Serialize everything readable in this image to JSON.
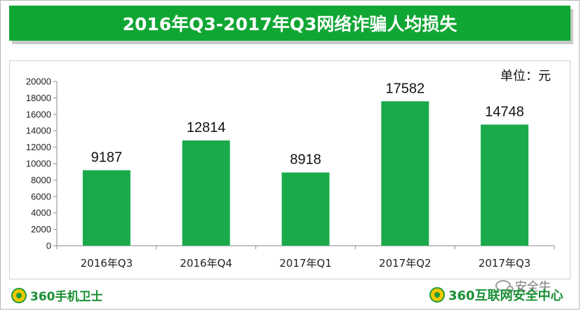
{
  "title": "2016年Q3-2017年Q3网络诈骗人均损失",
  "footer": {
    "left_brand": "360手机卫士",
    "right_brand": "360互联网安全中心",
    "watermark": "安全牛"
  },
  "colors": {
    "banner": "#10a634",
    "bar": "#1aaa4a",
    "brand_text": "#1a8f35"
  },
  "chart_data": {
    "type": "bar",
    "title": "2016年Q3-2017年Q3网络诈骗人均损失",
    "unit_label": "单位：元",
    "categories": [
      "2016年Q3",
      "2016年Q4",
      "2017年Q1",
      "2017年Q2",
      "2017年Q3"
    ],
    "values": [
      9187,
      12814,
      8918,
      17582,
      14748
    ],
    "ylim": [
      0,
      20000
    ],
    "yticks": [
      0,
      2000,
      4000,
      6000,
      8000,
      10000,
      12000,
      14000,
      16000,
      18000,
      20000
    ],
    "data_labels": true,
    "grid": false,
    "legend": "none"
  }
}
